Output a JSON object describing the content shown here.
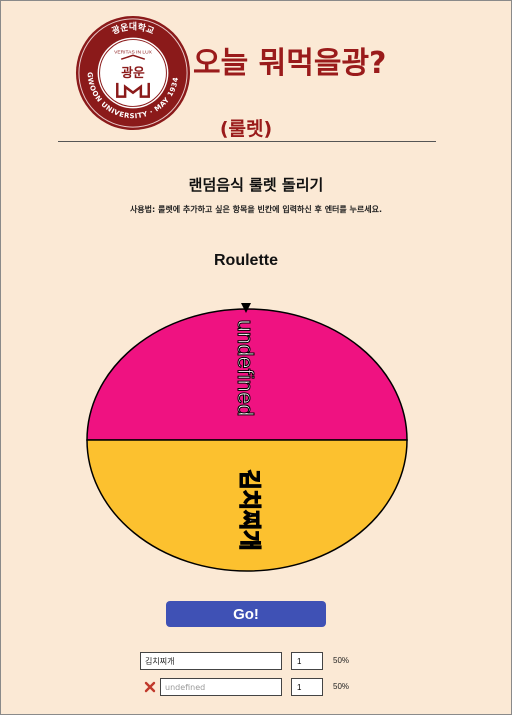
{
  "header": {
    "title": "오늘 뭐먹을광?",
    "subtitle": "(룰렛)",
    "logo": {
      "icon": "university-seal-icon",
      "top_text": "광운대학교",
      "center_text": "광운",
      "motto": "VERITAS IN LUX",
      "ring_text": "KWANGWOON UNIVERSITY · MAY 1934 SEOUL"
    }
  },
  "main": {
    "section_title": "랜덤음식 룰렛 돌리기",
    "instructions": "사용법: 룰렛에 추가하고 싶은 항목을 빈칸에 입력하신 후 엔터를 누르세요.",
    "roulette_label": "Roulette",
    "go_label": "Go!"
  },
  "wheel": {
    "segments": [
      {
        "label": "undefined",
        "color": "#ef1281"
      },
      {
        "label": "김치찌개",
        "color": "#fcc12f"
      }
    ],
    "pointer_icon": "triangle-down-icon"
  },
  "items": [
    {
      "name": "김치찌개",
      "placeholder": "",
      "weight": "1",
      "percent": "50%",
      "removable": false
    },
    {
      "name": "",
      "placeholder": "undefined",
      "weight": "1",
      "percent": "50%",
      "removable": true,
      "remove_icon": "close-x-icon"
    }
  ],
  "colors": {
    "background": "#fbe9d5",
    "title": "#9a1b1b",
    "button": "#3f51b5"
  }
}
